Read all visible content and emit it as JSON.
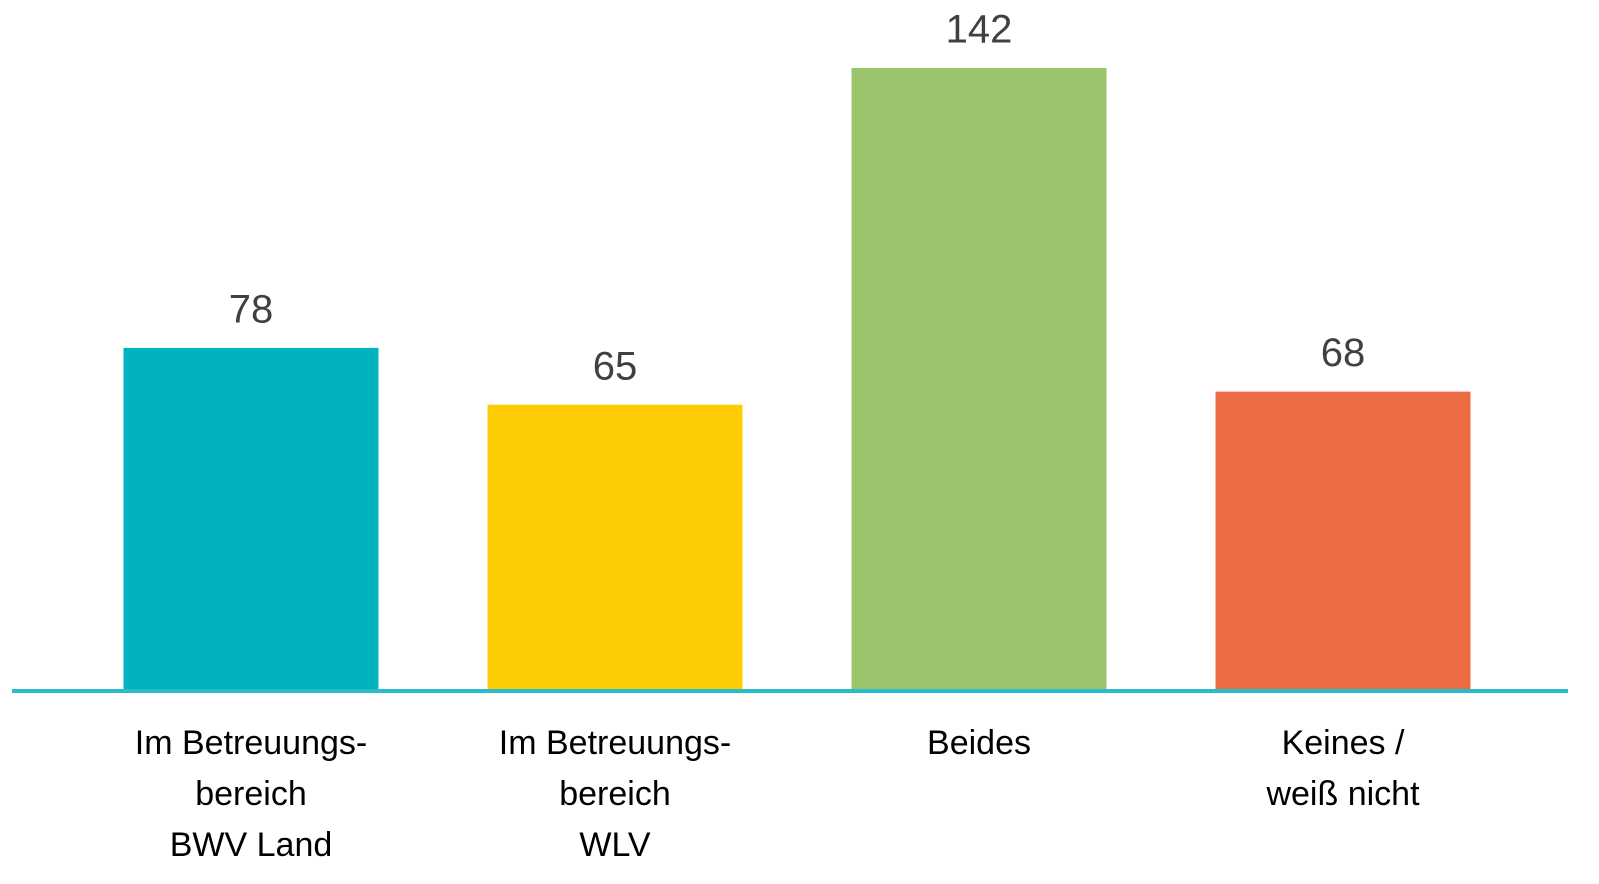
{
  "chart_data": {
    "type": "bar",
    "categories": [
      [
        "Im Betreuungs-",
        "bereich",
        "BWV Land"
      ],
      [
        "Im Betreuungs-",
        "bereich",
        "WLV"
      ],
      [
        "Beides"
      ],
      [
        "Keines /",
        "weiß nicht"
      ]
    ],
    "values": [
      78,
      65,
      142,
      68
    ],
    "colors": [
      "#00b3be",
      "#fdcc03",
      "#9bc46d",
      "#eb6b43"
    ],
    "ylim": [
      0,
      150
    ]
  }
}
